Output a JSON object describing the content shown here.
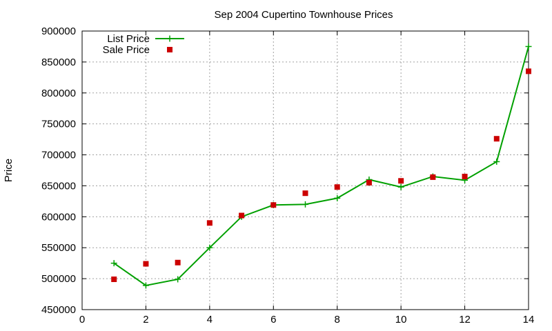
{
  "chart_data": {
    "type": "line",
    "title": "Sep 2004 Cupertino Townhouse Prices",
    "xlabel": "",
    "ylabel": "Price",
    "xlim": [
      0,
      14
    ],
    "ylim": [
      450000,
      900000
    ],
    "x_ticks": [
      0,
      2,
      4,
      6,
      8,
      10,
      12,
      14
    ],
    "y_ticks": [
      450000,
      500000,
      550000,
      600000,
      650000,
      700000,
      750000,
      800000,
      850000,
      900000
    ],
    "grid": true,
    "legend_position": "top-left",
    "series": [
      {
        "name": "List Price",
        "kind": "line-with-plus-markers",
        "color": "#00a000",
        "x": [
          1,
          2,
          3,
          4,
          5,
          6,
          7,
          8,
          9,
          10,
          11,
          12,
          13,
          14
        ],
        "values": [
          525000,
          489000,
          499000,
          550000,
          600000,
          619000,
          620000,
          630000,
          660000,
          648000,
          665000,
          659000,
          689000,
          875000
        ]
      },
      {
        "name": "Sale Price",
        "kind": "square-markers",
        "color": "#cc0000",
        "x": [
          1,
          2,
          3,
          4,
          5,
          6,
          7,
          8,
          9,
          10,
          11,
          12,
          13,
          14
        ],
        "values": [
          499000,
          524000,
          526000,
          590000,
          602000,
          619000,
          638000,
          648000,
          655000,
          658000,
          664000,
          665000,
          726000,
          835000
        ]
      }
    ]
  }
}
